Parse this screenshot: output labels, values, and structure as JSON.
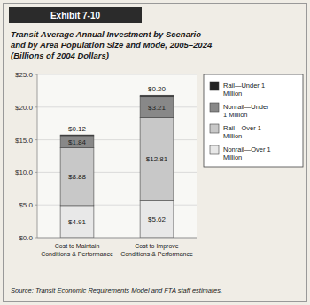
{
  "chart_data": {
    "type": "bar",
    "stacked": true,
    "title": "Transit Average Annual Investment by Scenario\nand by Area Population Size and Mode, 2005–2024",
    "subtitle": "(Billions of 2004 Dollars)",
    "annotations": [
      "Exhibit 7-10",
      "Source: Transit Economic Requirements Model and FTA staff estimates."
    ],
    "categories": [
      "Cost to Maintain\nConditions & Performance",
      "Cost to Improve\nConditions & Performance"
    ],
    "series": [
      {
        "name": "Nonrail—Over 1\nMillion",
        "color": "#e8e8e8",
        "values": [
          4.91,
          5.62
        ],
        "value_labels": [
          "$4.91",
          "$5.62"
        ]
      },
      {
        "name": "Rail—Over 1\nMillion",
        "color": "#c8c8c8",
        "values": [
          8.88,
          12.81
        ],
        "value_labels": [
          "$8.88",
          "$12.81"
        ]
      },
      {
        "name": "Nonrail—Under\n1 Million",
        "color": "#888888",
        "values": [
          1.84,
          3.21
        ],
        "value_labels": [
          "$1.84",
          "$3.21"
        ]
      },
      {
        "name": "Rail—Under 1\nMillion",
        "color": "#222222",
        "values": [
          0.12,
          0.2
        ],
        "value_labels": [
          "$0.12",
          "$0.20"
        ]
      }
    ],
    "ylim": [
      0,
      25
    ],
    "yticks": [
      {
        "value": 0,
        "label": "$0.0"
      },
      {
        "value": 5,
        "label": "$5.0"
      },
      {
        "value": 10,
        "label": "$10.0"
      },
      {
        "value": 15,
        "label": "$15.0"
      },
      {
        "value": 20,
        "label": "$20.0"
      },
      {
        "value": 25,
        "label": "$25.0"
      }
    ],
    "grid": true,
    "legend": "right",
    "data_labels": true
  }
}
